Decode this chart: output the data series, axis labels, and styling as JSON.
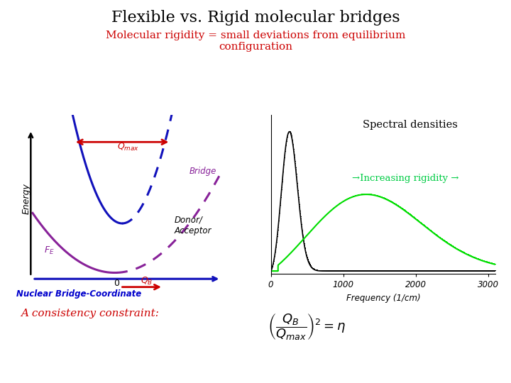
{
  "title": "Flexible vs. Rigid molecular bridges",
  "title_color": "#000000",
  "subtitle": "Molecular rigidity = small deviations from equilibrium\nconfiguration",
  "subtitle_color": "#cc0000",
  "background_color": "#ffffff",
  "spectral_title": "Spectral densities",
  "rigidity_label": "→Increasing rigidity →",
  "rigidity_color": "#00cc44",
  "xlabel_spectral": "Frequency (1/cm)",
  "ylabel_left": "Energy",
  "xlabel_left": "Nuclear Bridge-Coordinate",
  "xlabel_left_color": "#0000cc",
  "bottom_left": "A consistency constraint:",
  "bottom_left_color": "#cc0000",
  "blue_color": "#1111bb",
  "purple_color": "#882299",
  "black_color": "#000000",
  "green_color": "#00dd00",
  "red_color": "#cc0000"
}
